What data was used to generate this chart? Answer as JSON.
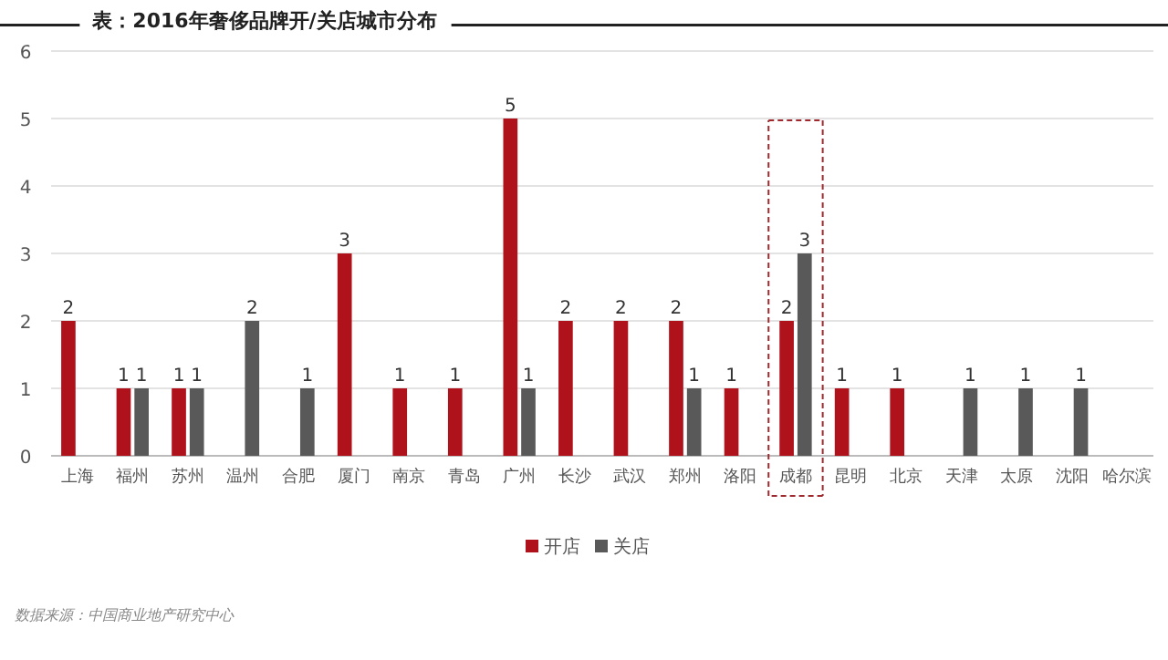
{
  "chart_data": {
    "type": "bar",
    "title": "表：2016年奢侈品牌开/关店城市分布",
    "categories": [
      "上海",
      "福州",
      "苏州",
      "温州",
      "合肥",
      "厦门",
      "南京",
      "青岛",
      "广州",
      "长沙",
      "武汉",
      "郑州",
      "洛阳",
      "成都",
      "昆明",
      "北京",
      "天津",
      "太原",
      "沈阳",
      "哈尔滨"
    ],
    "series": [
      {
        "name": "开店",
        "color": "#b0121b",
        "values": [
          2,
          1,
          1,
          null,
          null,
          3,
          1,
          1,
          5,
          2,
          2,
          2,
          1,
          2,
          1,
          1,
          null,
          null,
          null,
          null
        ]
      },
      {
        "name": "关店",
        "color": "#595959",
        "values": [
          null,
          1,
          1,
          2,
          1,
          null,
          null,
          null,
          1,
          null,
          null,
          1,
          null,
          3,
          null,
          null,
          1,
          1,
          1,
          null
        ]
      }
    ],
    "ylim": [
      0,
      6
    ],
    "yticks": [
      0,
      1,
      2,
      3,
      4,
      5,
      6
    ],
    "grid": "y",
    "legend": "bottom",
    "data_labels": true,
    "annotations": [
      "数据来源：中国商业地产研究中心"
    ]
  }
}
